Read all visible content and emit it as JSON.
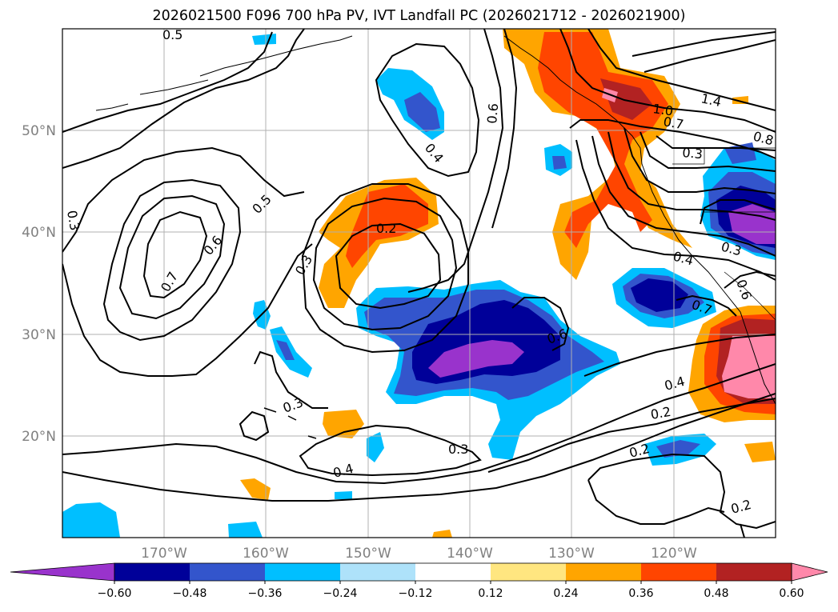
{
  "title": "2026021500 F096 700 hPa PV, IVT Landfall PC (2026021712 - 2026021900)",
  "lat_labels": [
    "50°N",
    "40°N",
    "30°N",
    "20°N"
  ],
  "lon_labels": [
    "170°W",
    "160°W",
    "150°W",
    "140°W",
    "130°W",
    "120°W"
  ],
  "contour_labels": [
    "0.5",
    "0.4",
    "0.6",
    "1.4",
    "1.0",
    "0.7",
    "0.8",
    "0.3",
    "0.3",
    "0.5",
    "0.6",
    "0.2",
    "0.7",
    "0.3",
    "0.4",
    "0.3",
    "0.6",
    "0.7",
    "0.6",
    "0.3",
    "0.4",
    "0.2",
    "0.3",
    "0.4",
    "0.2",
    "0.2"
  ],
  "colorbar": {
    "ticks": [
      "−0.60",
      "−0.48",
      "−0.36",
      "−0.24",
      "−0.12",
      "0.12",
      "0.24",
      "0.36",
      "0.48",
      "0.60"
    ],
    "colors": [
      "#9933cc",
      "#000099",
      "#3355cc",
      "#00bfff",
      "#aee2fa",
      "#ffffff",
      "#ffe680",
      "#ffa500",
      "#ff4500",
      "#b22222",
      "#ff88aa"
    ]
  }
}
